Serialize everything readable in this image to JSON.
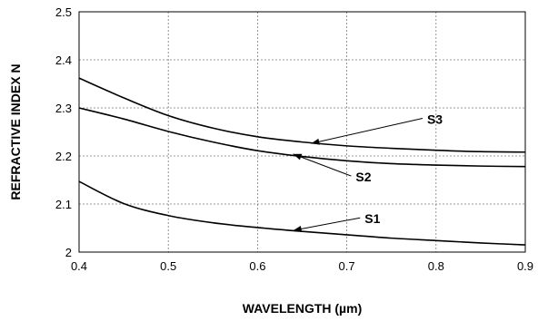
{
  "chart_data": {
    "type": "line",
    "xlabel": "WAVELENGTH (µm)",
    "ylabel": "REFRACTIVE INDEX N",
    "xlim": [
      0.4,
      0.9
    ],
    "ylim": [
      2.0,
      2.5
    ],
    "x_ticks": [
      "0.4",
      "0.5",
      "0.6",
      "0.7",
      "0.8",
      "0.9"
    ],
    "y_ticks": [
      "2",
      "2.1",
      "2.2",
      "2.3",
      "2.4",
      "2.5"
    ],
    "grid": true,
    "series": [
      {
        "name": "S3",
        "x": [
          0.4,
          0.45,
          0.5,
          0.55,
          0.6,
          0.65,
          0.7,
          0.75,
          0.8,
          0.85,
          0.9
        ],
        "y": [
          2.362,
          2.321,
          2.284,
          2.258,
          2.24,
          2.229,
          2.221,
          2.216,
          2.212,
          2.209,
          2.208
        ],
        "label_at": [
          0.79,
          2.267
        ],
        "arrow_to": [
          0.66,
          2.226
        ]
      },
      {
        "name": "S2",
        "x": [
          0.4,
          0.45,
          0.5,
          0.55,
          0.6,
          0.65,
          0.7,
          0.75,
          0.8,
          0.85,
          0.9
        ],
        "y": [
          2.3,
          2.277,
          2.251,
          2.229,
          2.211,
          2.199,
          2.19,
          2.184,
          2.181,
          2.179,
          2.178
        ],
        "label_at": [
          0.71,
          2.147
        ],
        "arrow_to": [
          0.64,
          2.204
        ]
      },
      {
        "name": "S1",
        "x": [
          0.4,
          0.45,
          0.5,
          0.55,
          0.6,
          0.65,
          0.7,
          0.75,
          0.8,
          0.85,
          0.9
        ],
        "y": [
          2.147,
          2.101,
          2.076,
          2.061,
          2.051,
          2.043,
          2.036,
          2.029,
          2.024,
          2.019,
          2.015
        ],
        "label_at": [
          0.72,
          2.06
        ],
        "arrow_to": [
          0.64,
          2.045
        ]
      }
    ]
  }
}
